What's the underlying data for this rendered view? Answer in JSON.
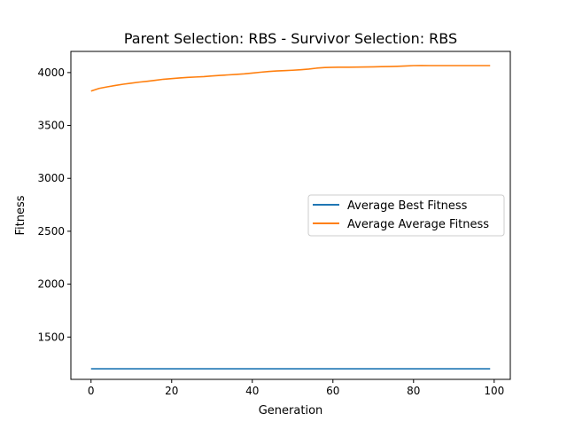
{
  "chart_data": {
    "type": "line",
    "title": "Parent Selection: RBS - Survivor Selection: RBS",
    "xlabel": "Generation",
    "ylabel": "Fitness",
    "xlim": [
      -5,
      104
    ],
    "ylim": [
      1100,
      4200
    ],
    "xticks": [
      0,
      20,
      40,
      60,
      80,
      100
    ],
    "yticks": [
      1500,
      2000,
      2500,
      3000,
      3500,
      4000
    ],
    "x": [
      0,
      1,
      2,
      4,
      6,
      8,
      10,
      12,
      14,
      16,
      18,
      20,
      22,
      24,
      26,
      28,
      30,
      32,
      34,
      36,
      38,
      40,
      42,
      44,
      46,
      48,
      50,
      52,
      54,
      56,
      58,
      60,
      62,
      64,
      66,
      68,
      70,
      72,
      74,
      76,
      78,
      80,
      82,
      84,
      86,
      88,
      90,
      92,
      94,
      96,
      98,
      99
    ],
    "series": [
      {
        "name": "Average Best Fitness",
        "color": "#1f77b4",
        "values": [
          1200,
          1200,
          1200,
          1200,
          1200,
          1200,
          1200,
          1200,
          1200,
          1200,
          1200,
          1200,
          1200,
          1200,
          1200,
          1200,
          1200,
          1200,
          1200,
          1200,
          1200,
          1200,
          1200,
          1200,
          1200,
          1200,
          1200,
          1200,
          1200,
          1200,
          1200,
          1200,
          1200,
          1200,
          1200,
          1200,
          1200,
          1200,
          1200,
          1200,
          1200,
          1200,
          1200,
          1200,
          1200,
          1200,
          1200,
          1200,
          1200,
          1200,
          1200,
          1200
        ]
      },
      {
        "name": "Average Average Fitness",
        "color": "#ff7f0e",
        "values": [
          3825,
          3838,
          3850,
          3865,
          3878,
          3890,
          3900,
          3910,
          3918,
          3927,
          3937,
          3943,
          3949,
          3954,
          3958,
          3962,
          3968,
          3973,
          3978,
          3983,
          3988,
          3995,
          4003,
          4010,
          4015,
          4018,
          4022,
          4027,
          4033,
          4042,
          4048,
          4050,
          4051,
          4051,
          4052,
          4053,
          4054,
          4056,
          4057,
          4059,
          4062,
          4066,
          4067,
          4066,
          4066,
          4066,
          4066,
          4066,
          4066,
          4066,
          4066,
          4066
        ]
      }
    ],
    "legend_position": "center-right",
    "grid": false
  }
}
